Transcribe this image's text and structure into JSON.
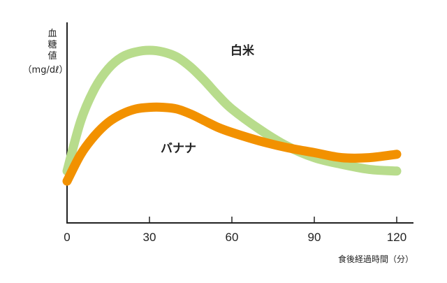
{
  "chart_data": {
    "type": "line",
    "ylabel_lines": [
      "血",
      "糖",
      "値",
      "（mg/dℓ）"
    ],
    "xlabel": "食後経過時間（分）",
    "x_ticks": [
      "0",
      "30",
      "60",
      "90",
      "120"
    ],
    "xlim": [
      0,
      120
    ],
    "ylim": [
      0,
      100
    ],
    "y_ticks_shown": false,
    "grid": false,
    "legend": "inline labels",
    "series": [
      {
        "name": "白米",
        "color": "#b8dc8c",
        "x": [
          0,
          5,
          10,
          15,
          20,
          25,
          30,
          35,
          40,
          45,
          50,
          55,
          60,
          70,
          80,
          90,
          100,
          110,
          120
        ],
        "y": [
          23,
          53,
          72,
          84,
          91,
          94,
          95,
          94,
          91,
          85,
          77,
          68,
          60,
          48,
          38,
          31,
          27,
          24,
          23
        ]
      },
      {
        "name": "バナナ",
        "color": "#f29100",
        "x": [
          0,
          5,
          10,
          15,
          20,
          25,
          30,
          35,
          40,
          45,
          50,
          55,
          60,
          70,
          80,
          90,
          100,
          110,
          120
        ],
        "y": [
          17,
          33,
          44,
          52,
          57,
          60,
          61,
          61,
          60,
          57,
          53,
          49,
          46,
          41,
          37,
          34,
          31,
          31,
          33
        ]
      }
    ]
  }
}
